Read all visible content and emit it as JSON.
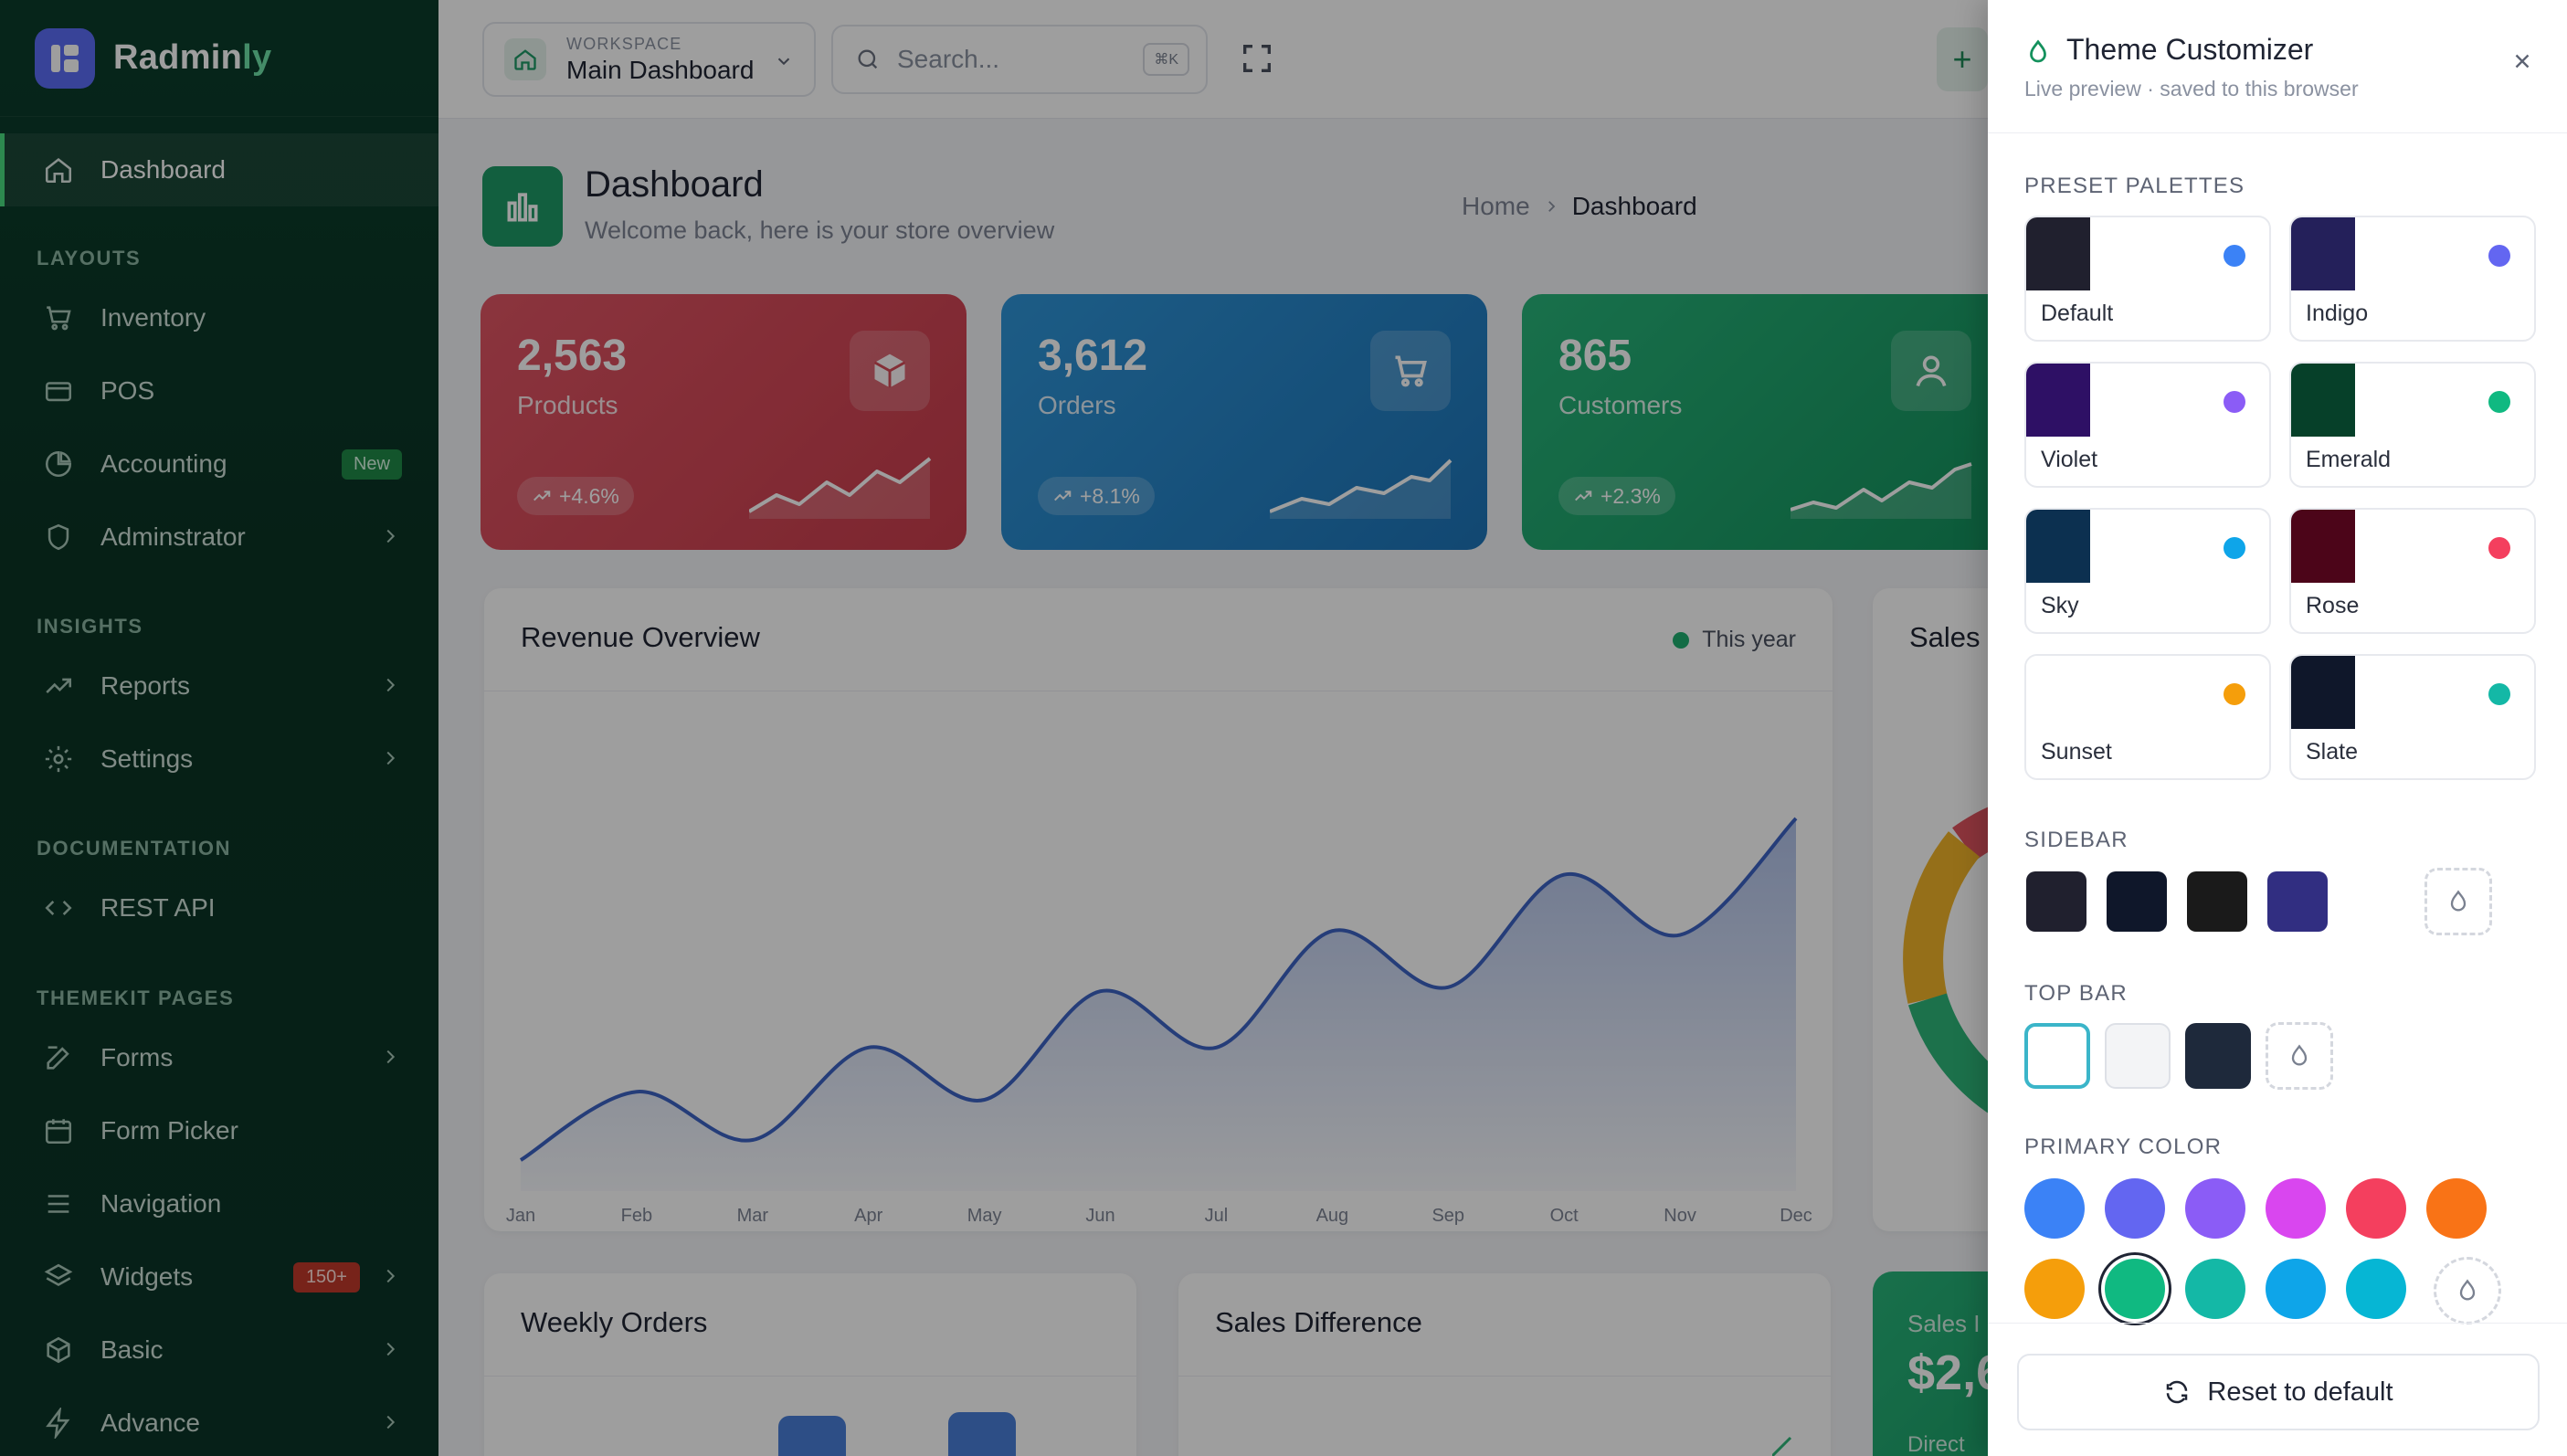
{
  "brand": {
    "name_main": "Radmin",
    "name_accent": "ly"
  },
  "sidebar": {
    "dashboard": "Dashboard",
    "sections": {
      "layouts": "LAYOUTS",
      "insights": "INSIGHTS",
      "documentation": "DOCUMENTATION",
      "themekit": "THEMEKIT PAGES"
    },
    "items": {
      "inventory": "Inventory",
      "pos": "POS",
      "accounting": "Accounting",
      "accounting_badge": "New",
      "administrator": "Adminstrator",
      "reports": "Reports",
      "settings": "Settings",
      "rest_api": "REST API",
      "forms": "Forms",
      "form_picker": "Form Picker",
      "navigation": "Navigation",
      "widgets": "Widgets",
      "widgets_badge": "150+",
      "basic": "Basic",
      "advance": "Advance"
    }
  },
  "topbar": {
    "workspace_label": "WORKSPACE",
    "workspace_value": "Main Dashboard",
    "search_placeholder": "Search...",
    "search_shortcut": "⌘K",
    "add_label": "+"
  },
  "page": {
    "title": "Dashboard",
    "subtitle": "Welcome back, here is your store overview",
    "breadcrumb_home": "Home",
    "breadcrumb_current": "Dashboard"
  },
  "stats": [
    {
      "value": "2,563",
      "label": "Products",
      "change": "+4.6%",
      "color": "#d64b57"
    },
    {
      "value": "3,612",
      "label": "Orders",
      "change": "+8.1%",
      "color": "#2a85c9"
    },
    {
      "value": "865",
      "label": "Customers",
      "change": "+2.3%",
      "color": "#20a870"
    }
  ],
  "revenue": {
    "title": "Revenue Overview",
    "legend": "This year",
    "chart_data": {
      "type": "line",
      "categories": [
        "Jan",
        "Feb",
        "Mar",
        "Apr",
        "May",
        "Jun",
        "Jul",
        "Aug",
        "Sep",
        "Oct",
        "Nov",
        "Dec"
      ],
      "series": [
        {
          "name": "This year",
          "values": [
            0.0,
            0.17,
            0.05,
            0.28,
            0.15,
            0.42,
            0.28,
            0.57,
            0.43,
            0.71,
            0.56,
            0.85
          ]
        }
      ]
    }
  },
  "sales_card": {
    "title": "Sales I"
  },
  "weekly_orders": {
    "title": "Weekly Orders"
  },
  "sales_difference": {
    "title": "Sales Difference"
  },
  "sales_income": {
    "label": "Sales I",
    "value": "$2,6",
    "sub": "Direct"
  },
  "theme": {
    "title": "Theme Customizer",
    "subtitle": "Live preview · saved to this browser",
    "preset_heading": "PRESET PALETTES",
    "presets": [
      {
        "name": "Default",
        "swatch": "#20202e",
        "accent": "#3b82f6"
      },
      {
        "name": "Indigo",
        "swatch": "#24205a",
        "accent": "#6366f1"
      },
      {
        "name": "Violet",
        "swatch": "#2e1065",
        "accent": "#8b5cf6"
      },
      {
        "name": "Emerald",
        "swatch": "#064029",
        "accent": "#10b981"
      },
      {
        "name": "Sky",
        "swatch": "#0c3050",
        "accent": "#0ea5e9"
      },
      {
        "name": "Rose",
        "swatch": "#4c0519",
        "accent": "#f43f5e"
      },
      {
        "name": "Sunset",
        "swatch": "#ffffff",
        "accent": "#f59e0b"
      },
      {
        "name": "Slate",
        "swatch": "#0f172a",
        "accent": "#14b8a6"
      }
    ],
    "sidebar_heading": "SIDEBAR",
    "sidebar_colors": [
      "#20202e",
      "#0f172a",
      "#1a1a1a",
      "#312e81"
    ],
    "topbar_heading": "TOP BAR",
    "topbar_colors": [
      "#ffffff",
      "#f3f4f6",
      "#1e293b"
    ],
    "primary_heading": "PRIMARY COLOR",
    "primary_colors": [
      "#3b82f6",
      "#6366f1",
      "#8b5cf6",
      "#d946ef",
      "#f43f5e",
      "#f97316",
      "#f59e0b",
      "#10b981",
      "#14b8a6",
      "#0ea5e9",
      "#06b6d4"
    ],
    "primary_selected": "#10b981",
    "reset_label": "Reset to default"
  }
}
